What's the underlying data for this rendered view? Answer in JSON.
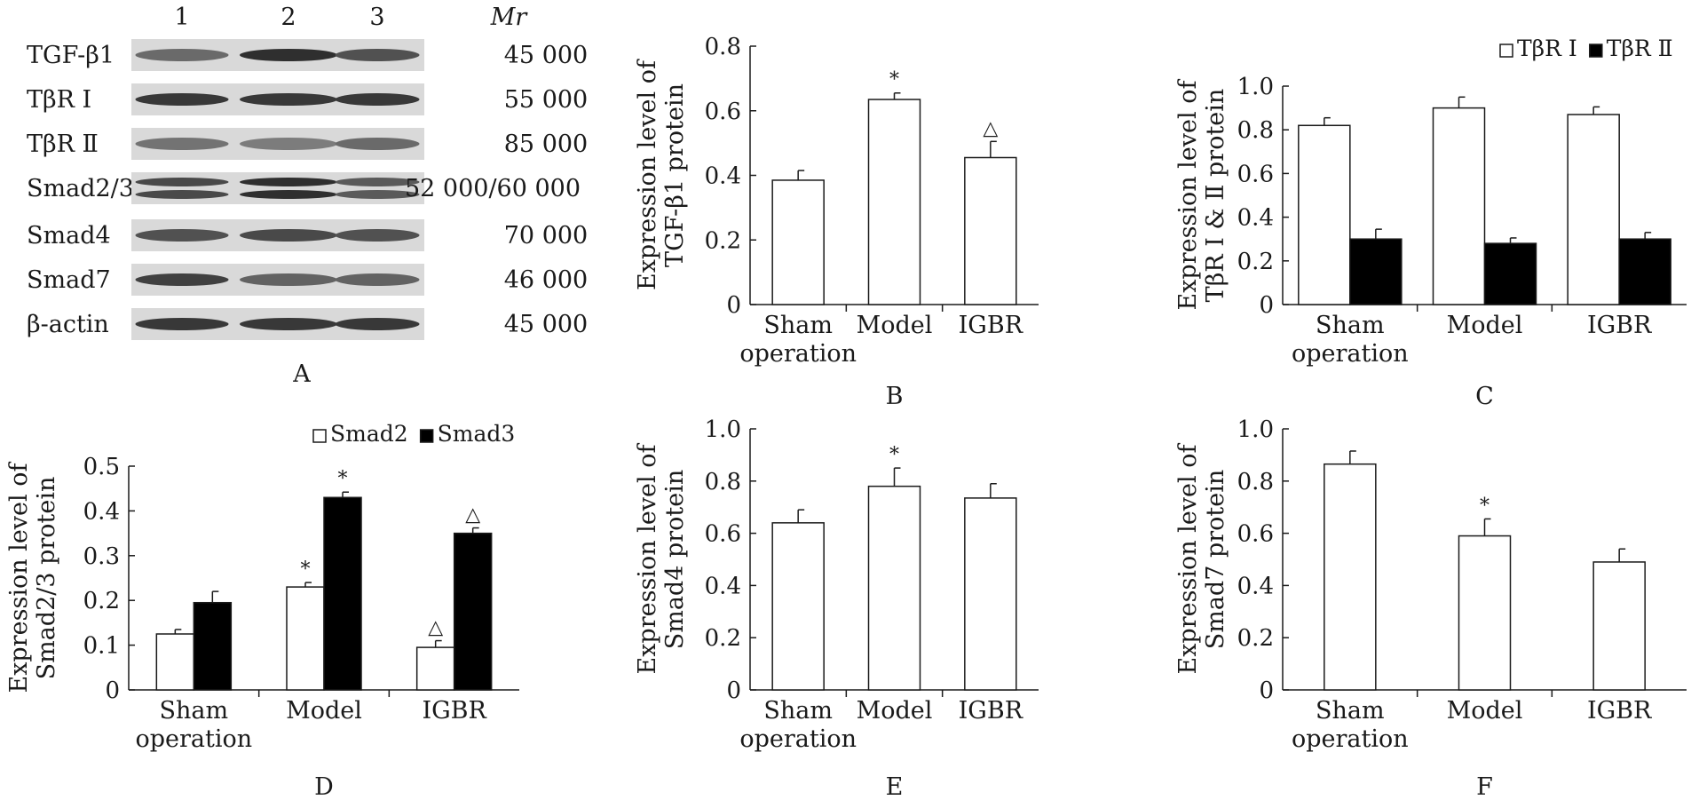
{
  "blot": {
    "letter": "A",
    "lanes": [
      "1",
      "2",
      "3"
    ],
    "mr_header": "Mr",
    "rows": [
      {
        "label": "TGF-β1",
        "mr": "45 000",
        "intensity": [
          0.55,
          0.9,
          0.7
        ]
      },
      {
        "label": "TβR Ⅰ",
        "mr": "55 000",
        "intensity": [
          0.85,
          0.85,
          0.85
        ]
      },
      {
        "label": "TβR Ⅱ",
        "mr": "85 000",
        "intensity": [
          0.5,
          0.45,
          0.55
        ]
      },
      {
        "label": "Smad2/3",
        "mr": "52 000/60 000",
        "intensity": [
          0.75,
          0.9,
          0.65
        ]
      },
      {
        "label": "Smad4",
        "mr": "70 000",
        "intensity": [
          0.7,
          0.75,
          0.7
        ]
      },
      {
        "label": "Smad7",
        "mr": "46 000",
        "intensity": [
          0.8,
          0.6,
          0.6
        ]
      },
      {
        "label": "β-actin",
        "mr": "45 000",
        "intensity": [
          0.85,
          0.85,
          0.85
        ]
      }
    ]
  },
  "chart_data": [
    {
      "id": "B",
      "type": "bar",
      "letter": "B",
      "categories": [
        [
          "Sham",
          "operation"
        ],
        [
          "Model"
        ],
        [
          "IGBR"
        ]
      ],
      "ylabel": [
        "Expression level of",
        "TGF-β1 protein"
      ],
      "ylim": [
        0,
        0.8
      ],
      "yticks": [
        0,
        0.2,
        0.4,
        0.6,
        0.8
      ],
      "ytick_labels": [
        "0",
        "0.2",
        "0.4",
        "0.6",
        "0.8"
      ],
      "series": [
        {
          "name": "",
          "color": "white",
          "values": [
            0.385,
            0.635,
            0.455
          ],
          "errors": [
            0.03,
            0.02,
            0.05
          ],
          "sig": [
            "",
            "*",
            "△"
          ]
        }
      ],
      "legend": []
    },
    {
      "id": "C",
      "type": "bar",
      "letter": "C",
      "categories": [
        [
          "Sham",
          "operation"
        ],
        [
          "Model"
        ],
        [
          "IGBR"
        ]
      ],
      "ylabel": [
        "Expression level of",
        "TβR Ⅰ & Ⅱ protein"
      ],
      "ylim": [
        0,
        1.0
      ],
      "yticks": [
        0,
        0.2,
        0.4,
        0.6,
        0.8,
        1.0
      ],
      "ytick_labels": [
        "0",
        "0.2",
        "0.4",
        "0.6",
        "0.8",
        "1.0"
      ],
      "series": [
        {
          "name": "TβR Ⅰ",
          "color": "white",
          "values": [
            0.82,
            0.9,
            0.87
          ],
          "errors": [
            0.035,
            0.05,
            0.035
          ],
          "sig": [
            "",
            "",
            ""
          ]
        },
        {
          "name": "TβR Ⅱ",
          "color": "black",
          "values": [
            0.3,
            0.28,
            0.3
          ],
          "errors": [
            0.045,
            0.025,
            0.03
          ],
          "sig": [
            "",
            "",
            ""
          ]
        }
      ],
      "legend": [
        "TβR Ⅰ",
        "TβR Ⅱ"
      ]
    },
    {
      "id": "D",
      "type": "bar",
      "letter": "D",
      "categories": [
        [
          "Sham",
          "operation"
        ],
        [
          "Model"
        ],
        [
          "IGBR"
        ]
      ],
      "ylabel": [
        "Expression level of",
        "Smad2/3 protein"
      ],
      "ylim": [
        0,
        0.5
      ],
      "yticks": [
        0,
        0.1,
        0.2,
        0.3,
        0.4,
        0.5
      ],
      "ytick_labels": [
        "0",
        "0.1",
        "0.2",
        "0.3",
        "0.4",
        "0.5"
      ],
      "series": [
        {
          "name": "Smad2",
          "color": "white",
          "values": [
            0.125,
            0.23,
            0.095
          ],
          "errors": [
            0.01,
            0.01,
            0.015
          ],
          "sig": [
            "",
            "*",
            "△"
          ]
        },
        {
          "name": "Smad3",
          "color": "black",
          "values": [
            0.195,
            0.43,
            0.35
          ],
          "errors": [
            0.025,
            0.012,
            0.012
          ],
          "sig": [
            "",
            "*",
            "△"
          ]
        }
      ],
      "legend": [
        "Smad2",
        "Smad3"
      ]
    },
    {
      "id": "E",
      "type": "bar",
      "letter": "E",
      "categories": [
        [
          "Sham",
          "operation"
        ],
        [
          "Model"
        ],
        [
          "IGBR"
        ]
      ],
      "ylabel": [
        "Expression level of",
        "Smad4 protein"
      ],
      "ylim": [
        0,
        1.0
      ],
      "yticks": [
        0,
        0.2,
        0.4,
        0.6,
        0.8,
        1.0
      ],
      "ytick_labels": [
        "0",
        "0.2",
        "0.4",
        "0.6",
        "0.8",
        "1.0"
      ],
      "series": [
        {
          "name": "",
          "color": "white",
          "values": [
            0.64,
            0.78,
            0.735
          ],
          "errors": [
            0.05,
            0.07,
            0.055
          ],
          "sig": [
            "",
            "*",
            ""
          ]
        }
      ],
      "legend": []
    },
    {
      "id": "F",
      "type": "bar",
      "letter": "F",
      "categories": [
        [
          "Sham",
          "operation"
        ],
        [
          "Model"
        ],
        [
          "IGBR"
        ]
      ],
      "ylabel": [
        "Expression level of",
        "Smad7 protein"
      ],
      "ylim": [
        0,
        1.0
      ],
      "yticks": [
        0,
        0.2,
        0.4,
        0.6,
        0.8,
        1.0
      ],
      "ytick_labels": [
        "0",
        "0.2",
        "0.4",
        "0.6",
        "0.8",
        "1.0"
      ],
      "series": [
        {
          "name": "",
          "color": "white",
          "values": [
            0.865,
            0.59,
            0.49
          ],
          "errors": [
            0.05,
            0.065,
            0.05
          ],
          "sig": [
            "",
            "*",
            ""
          ]
        }
      ],
      "legend": []
    }
  ]
}
